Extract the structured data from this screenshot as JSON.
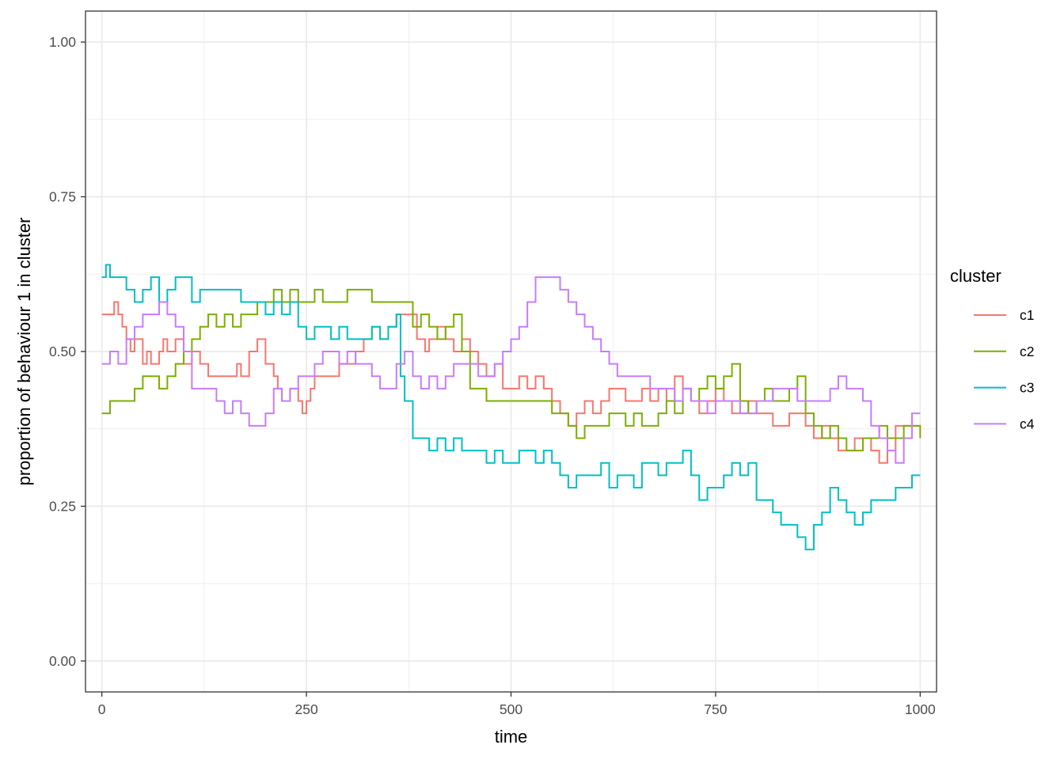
{
  "chart_data": {
    "type": "line",
    "xlabel": "time",
    "ylabel": "proportion of behaviour 1 in cluster",
    "xlim": [
      -20,
      1020
    ],
    "ylim": [
      -0.05,
      1.05
    ],
    "x_ticks": [
      0,
      250,
      500,
      750,
      1000
    ],
    "y_ticks": [
      0.0,
      0.25,
      0.5,
      0.75,
      1.0
    ],
    "x_tick_labels": [
      "0",
      "250",
      "500",
      "750",
      "1000"
    ],
    "y_tick_labels": [
      "0.00",
      "0.25",
      "0.50",
      "0.75",
      "1.00"
    ],
    "grid": true,
    "legend": {
      "title": "cluster",
      "position": "right"
    },
    "series": [
      {
        "name": "c1",
        "color": "#F8766D",
        "x": [
          0,
          15,
          20,
          25,
          30,
          35,
          40,
          50,
          55,
          60,
          70,
          75,
          80,
          90,
          100,
          110,
          120,
          130,
          150,
          165,
          170,
          180,
          190,
          200,
          210,
          215,
          220,
          230,
          240,
          245,
          250,
          255,
          260,
          275,
          290,
          300,
          310,
          320,
          330,
          340,
          350,
          360,
          375,
          385,
          395,
          400,
          410,
          420,
          430,
          440,
          450,
          460,
          470,
          480,
          490,
          500,
          510,
          520,
          530,
          540,
          550,
          560,
          570,
          580,
          590,
          600,
          610,
          620,
          630,
          640,
          650,
          660,
          670,
          680,
          690,
          700,
          710,
          720,
          730,
          740,
          750,
          760,
          770,
          780,
          790,
          800,
          810,
          820,
          830,
          840,
          850,
          860,
          870,
          880,
          890,
          900,
          910,
          920,
          930,
          940,
          950,
          960,
          970,
          980,
          990,
          1000
        ],
        "y": [
          0.56,
          0.58,
          0.56,
          0.54,
          0.52,
          0.5,
          0.52,
          0.48,
          0.5,
          0.48,
          0.5,
          0.52,
          0.5,
          0.52,
          0.48,
          0.5,
          0.48,
          0.46,
          0.46,
          0.48,
          0.46,
          0.5,
          0.52,
          0.48,
          0.46,
          0.44,
          0.42,
          0.44,
          0.42,
          0.4,
          0.42,
          0.44,
          0.46,
          0.46,
          0.48,
          0.48,
          0.5,
          0.52,
          0.54,
          0.52,
          0.54,
          0.56,
          0.56,
          0.52,
          0.5,
          0.52,
          0.54,
          0.52,
          0.5,
          0.52,
          0.5,
          0.48,
          0.46,
          0.48,
          0.44,
          0.44,
          0.46,
          0.44,
          0.46,
          0.44,
          0.42,
          0.4,
          0.38,
          0.4,
          0.42,
          0.4,
          0.42,
          0.44,
          0.44,
          0.42,
          0.42,
          0.44,
          0.42,
          0.44,
          0.42,
          0.46,
          0.44,
          0.42,
          0.4,
          0.42,
          0.44,
          0.42,
          0.4,
          0.4,
          0.42,
          0.4,
          0.4,
          0.38,
          0.38,
          0.4,
          0.4,
          0.38,
          0.36,
          0.38,
          0.36,
          0.34,
          0.34,
          0.36,
          0.36,
          0.34,
          0.32,
          0.34,
          0.38,
          0.38,
          0.38,
          0.38
        ]
      },
      {
        "name": "c2",
        "color": "#7CAE00",
        "x": [
          0,
          10,
          20,
          30,
          40,
          50,
          60,
          70,
          80,
          90,
          100,
          110,
          120,
          130,
          140,
          150,
          160,
          170,
          180,
          190,
          200,
          210,
          220,
          230,
          240,
          250,
          260,
          270,
          280,
          290,
          300,
          310,
          320,
          330,
          340,
          350,
          360,
          370,
          375,
          380,
          390,
          400,
          410,
          420,
          430,
          440,
          450,
          460,
          470,
          480,
          490,
          500,
          510,
          520,
          530,
          540,
          550,
          560,
          570,
          580,
          590,
          600,
          610,
          620,
          630,
          640,
          650,
          660,
          670,
          680,
          690,
          700,
          710,
          720,
          730,
          740,
          750,
          760,
          770,
          780,
          790,
          800,
          810,
          820,
          830,
          840,
          850,
          860,
          870,
          880,
          890,
          900,
          910,
          920,
          930,
          940,
          950,
          960,
          970,
          980,
          990,
          1000
        ],
        "y": [
          0.4,
          0.42,
          0.42,
          0.42,
          0.44,
          0.46,
          0.46,
          0.44,
          0.46,
          0.48,
          0.5,
          0.52,
          0.54,
          0.56,
          0.54,
          0.56,
          0.54,
          0.56,
          0.56,
          0.58,
          0.58,
          0.6,
          0.58,
          0.6,
          0.58,
          0.58,
          0.6,
          0.58,
          0.58,
          0.58,
          0.6,
          0.6,
          0.6,
          0.58,
          0.58,
          0.58,
          0.58,
          0.58,
          0.58,
          0.54,
          0.56,
          0.54,
          0.52,
          0.54,
          0.56,
          0.5,
          0.44,
          0.44,
          0.42,
          0.42,
          0.42,
          0.42,
          0.42,
          0.42,
          0.42,
          0.42,
          0.4,
          0.4,
          0.38,
          0.36,
          0.38,
          0.38,
          0.38,
          0.4,
          0.4,
          0.38,
          0.4,
          0.38,
          0.38,
          0.4,
          0.42,
          0.4,
          0.44,
          0.42,
          0.44,
          0.46,
          0.44,
          0.46,
          0.48,
          0.42,
          0.4,
          0.42,
          0.44,
          0.42,
          0.42,
          0.44,
          0.46,
          0.4,
          0.38,
          0.36,
          0.38,
          0.36,
          0.34,
          0.34,
          0.36,
          0.36,
          0.38,
          0.36,
          0.36,
          0.38,
          0.38,
          0.36
        ]
      },
      {
        "name": "c3",
        "color": "#00BFC4",
        "x": [
          0,
          5,
          10,
          20,
          30,
          40,
          50,
          60,
          70,
          80,
          90,
          100,
          110,
          120,
          130,
          140,
          150,
          160,
          170,
          180,
          190,
          200,
          210,
          220,
          230,
          240,
          250,
          260,
          270,
          280,
          290,
          300,
          310,
          320,
          330,
          340,
          350,
          360,
          365,
          370,
          380,
          390,
          400,
          410,
          420,
          430,
          440,
          450,
          460,
          470,
          480,
          490,
          500,
          510,
          520,
          530,
          540,
          550,
          560,
          570,
          580,
          590,
          600,
          610,
          620,
          630,
          640,
          650,
          660,
          670,
          680,
          690,
          700,
          710,
          720,
          730,
          740,
          750,
          760,
          770,
          780,
          790,
          800,
          810,
          820,
          830,
          840,
          850,
          860,
          870,
          880,
          890,
          900,
          910,
          920,
          930,
          940,
          950,
          960,
          970,
          980,
          990,
          1000
        ],
        "y": [
          0.62,
          0.64,
          0.62,
          0.62,
          0.6,
          0.58,
          0.6,
          0.62,
          0.58,
          0.6,
          0.62,
          0.62,
          0.58,
          0.6,
          0.6,
          0.6,
          0.6,
          0.6,
          0.58,
          0.58,
          0.58,
          0.56,
          0.58,
          0.56,
          0.58,
          0.54,
          0.52,
          0.54,
          0.54,
          0.52,
          0.54,
          0.52,
          0.52,
          0.52,
          0.54,
          0.52,
          0.54,
          0.56,
          0.46,
          0.42,
          0.36,
          0.36,
          0.34,
          0.36,
          0.34,
          0.36,
          0.34,
          0.34,
          0.34,
          0.32,
          0.34,
          0.32,
          0.32,
          0.34,
          0.34,
          0.32,
          0.34,
          0.32,
          0.3,
          0.28,
          0.3,
          0.3,
          0.3,
          0.32,
          0.28,
          0.3,
          0.3,
          0.28,
          0.32,
          0.32,
          0.3,
          0.32,
          0.32,
          0.34,
          0.3,
          0.26,
          0.28,
          0.28,
          0.3,
          0.32,
          0.3,
          0.32,
          0.26,
          0.26,
          0.24,
          0.22,
          0.22,
          0.2,
          0.18,
          0.22,
          0.24,
          0.28,
          0.26,
          0.24,
          0.22,
          0.24,
          0.26,
          0.26,
          0.26,
          0.28,
          0.28,
          0.3,
          0.3
        ]
      },
      {
        "name": "c4",
        "color": "#C77CFF",
        "x": [
          0,
          10,
          20,
          30,
          40,
          50,
          60,
          70,
          80,
          90,
          100,
          110,
          120,
          130,
          140,
          150,
          160,
          170,
          180,
          190,
          200,
          210,
          220,
          230,
          240,
          250,
          260,
          270,
          280,
          290,
          300,
          310,
          320,
          330,
          340,
          350,
          360,
          370,
          380,
          390,
          400,
          410,
          420,
          430,
          440,
          450,
          460,
          470,
          480,
          490,
          500,
          510,
          520,
          530,
          540,
          550,
          560,
          570,
          580,
          590,
          600,
          610,
          620,
          630,
          640,
          650,
          660,
          670,
          680,
          690,
          700,
          710,
          720,
          730,
          740,
          750,
          760,
          770,
          780,
          790,
          800,
          810,
          820,
          830,
          840,
          850,
          860,
          870,
          880,
          890,
          900,
          910,
          920,
          930,
          940,
          950,
          960,
          970,
          980,
          990,
          1000
        ],
        "y": [
          0.48,
          0.5,
          0.48,
          0.52,
          0.54,
          0.56,
          0.56,
          0.58,
          0.56,
          0.54,
          0.5,
          0.44,
          0.44,
          0.44,
          0.42,
          0.4,
          0.42,
          0.4,
          0.38,
          0.38,
          0.4,
          0.44,
          0.42,
          0.44,
          0.46,
          0.46,
          0.48,
          0.5,
          0.5,
          0.48,
          0.5,
          0.48,
          0.48,
          0.46,
          0.44,
          0.44,
          0.48,
          0.5,
          0.46,
          0.44,
          0.46,
          0.44,
          0.46,
          0.48,
          0.48,
          0.48,
          0.46,
          0.46,
          0.48,
          0.5,
          0.52,
          0.54,
          0.58,
          0.62,
          0.62,
          0.62,
          0.6,
          0.58,
          0.56,
          0.54,
          0.52,
          0.5,
          0.48,
          0.46,
          0.46,
          0.46,
          0.46,
          0.44,
          0.44,
          0.44,
          0.42,
          0.44,
          0.42,
          0.42,
          0.4,
          0.42,
          0.42,
          0.42,
          0.4,
          0.4,
          0.42,
          0.42,
          0.44,
          0.44,
          0.44,
          0.42,
          0.42,
          0.42,
          0.42,
          0.44,
          0.46,
          0.44,
          0.44,
          0.42,
          0.38,
          0.36,
          0.34,
          0.32,
          0.36,
          0.4,
          0.4
        ]
      }
    ]
  }
}
